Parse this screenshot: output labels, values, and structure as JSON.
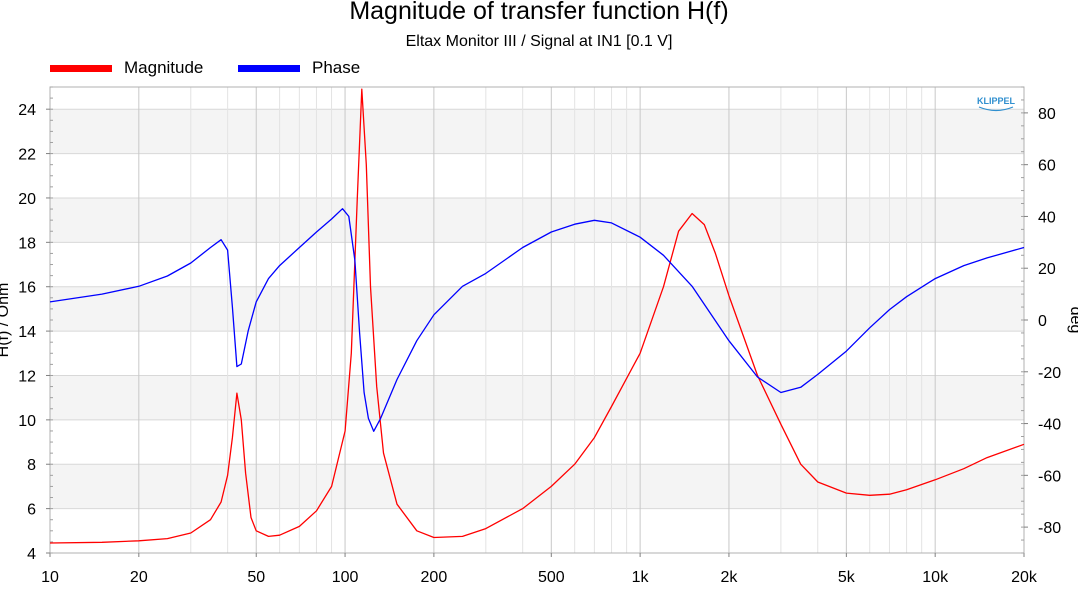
{
  "chart_data": {
    "type": "line",
    "title": "Magnitude of transfer function H(f)",
    "subtitle": "Eltax Monitor III / Signal at IN1 [0.1 V]",
    "logo": "KLIPPEL",
    "ylabel_left": "H(f) / Ohm",
    "ylabel_right": "deg",
    "x_scale": "log",
    "xlim": [
      10,
      20000
    ],
    "ylim_left": [
      4,
      25
    ],
    "ylim_right": [
      -90,
      90
    ],
    "grid": true,
    "legend_position": "top-left",
    "x_ticks": [
      {
        "label": "10",
        "value": 10
      },
      {
        "label": "20",
        "value": 20
      },
      {
        "label": "50",
        "value": 50
      },
      {
        "label": "100",
        "value": 100
      },
      {
        "label": "200",
        "value": 200
      },
      {
        "label": "500",
        "value": 500
      },
      {
        "label": "1k",
        "value": 1000
      },
      {
        "label": "2k",
        "value": 2000
      },
      {
        "label": "5k",
        "value": 5000
      },
      {
        "label": "10k",
        "value": 10000
      },
      {
        "label": "20k",
        "value": 20000
      }
    ],
    "y_ticks_left": [
      4,
      6,
      8,
      10,
      12,
      14,
      16,
      18,
      20,
      22,
      24
    ],
    "y_ticks_right": [
      -80,
      -60,
      -40,
      -20,
      0,
      20,
      40,
      60,
      80
    ],
    "series": [
      {
        "name": "Magnitude",
        "axis": "left",
        "color": "#ff0000",
        "points": [
          [
            10,
            4.45
          ],
          [
            15,
            4.48
          ],
          [
            20,
            4.55
          ],
          [
            25,
            4.65
          ],
          [
            30,
            4.9
          ],
          [
            35,
            5.5
          ],
          [
            38,
            6.3
          ],
          [
            40,
            7.5
          ],
          [
            41.5,
            9.2
          ],
          [
            43,
            11.2
          ],
          [
            44.5,
            10.0
          ],
          [
            46,
            7.6
          ],
          [
            48,
            5.6
          ],
          [
            50,
            5.0
          ],
          [
            55,
            4.75
          ],
          [
            60,
            4.8
          ],
          [
            70,
            5.2
          ],
          [
            80,
            5.9
          ],
          [
            90,
            7.0
          ],
          [
            100,
            9.5
          ],
          [
            105,
            13.0
          ],
          [
            110,
            20.0
          ],
          [
            114,
            24.9
          ],
          [
            118,
            21.5
          ],
          [
            122,
            16.0
          ],
          [
            128,
            11.5
          ],
          [
            135,
            8.5
          ],
          [
            150,
            6.2
          ],
          [
            175,
            5.0
          ],
          [
            200,
            4.7
          ],
          [
            250,
            4.75
          ],
          [
            300,
            5.1
          ],
          [
            400,
            6.0
          ],
          [
            500,
            7.0
          ],
          [
            600,
            8.0
          ],
          [
            700,
            9.2
          ],
          [
            800,
            10.6
          ],
          [
            1000,
            13.0
          ],
          [
            1200,
            16.0
          ],
          [
            1350,
            18.5
          ],
          [
            1500,
            19.3
          ],
          [
            1650,
            18.8
          ],
          [
            1800,
            17.5
          ],
          [
            2000,
            15.6
          ],
          [
            2500,
            12.0
          ],
          [
            3000,
            9.8
          ],
          [
            3500,
            8.0
          ],
          [
            4000,
            7.2
          ],
          [
            5000,
            6.7
          ],
          [
            6000,
            6.6
          ],
          [
            7000,
            6.65
          ],
          [
            8000,
            6.85
          ],
          [
            10000,
            7.3
          ],
          [
            12500,
            7.8
          ],
          [
            15000,
            8.3
          ],
          [
            20000,
            8.9
          ]
        ]
      },
      {
        "name": "Phase",
        "axis": "right",
        "color": "#0000ff",
        "points": [
          [
            10,
            7
          ],
          [
            15,
            10
          ],
          [
            20,
            13
          ],
          [
            25,
            17
          ],
          [
            30,
            22
          ],
          [
            35,
            28
          ],
          [
            38,
            31
          ],
          [
            40,
            27
          ],
          [
            41.5,
            5
          ],
          [
            43,
            -18
          ],
          [
            44.5,
            -17
          ],
          [
            47,
            -4
          ],
          [
            50,
            7
          ],
          [
            55,
            16
          ],
          [
            60,
            21
          ],
          [
            70,
            28
          ],
          [
            80,
            34
          ],
          [
            90,
            39
          ],
          [
            98,
            43
          ],
          [
            103,
            40
          ],
          [
            108,
            23
          ],
          [
            112,
            -5
          ],
          [
            116,
            -28
          ],
          [
            120,
            -38
          ],
          [
            125,
            -43
          ],
          [
            132,
            -38
          ],
          [
            150,
            -23
          ],
          [
            175,
            -8
          ],
          [
            200,
            2
          ],
          [
            250,
            13
          ],
          [
            300,
            18
          ],
          [
            400,
            28
          ],
          [
            500,
            34
          ],
          [
            600,
            37
          ],
          [
            700,
            38.5
          ],
          [
            800,
            37.5
          ],
          [
            1000,
            32
          ],
          [
            1200,
            25
          ],
          [
            1500,
            13
          ],
          [
            2000,
            -8
          ],
          [
            2500,
            -22
          ],
          [
            3000,
            -28
          ],
          [
            3500,
            -26
          ],
          [
            4000,
            -21
          ],
          [
            5000,
            -12
          ],
          [
            6000,
            -3
          ],
          [
            7000,
            4
          ],
          [
            8000,
            9
          ],
          [
            10000,
            16
          ],
          [
            12500,
            21
          ],
          [
            15000,
            24
          ],
          [
            20000,
            28
          ]
        ]
      }
    ]
  }
}
